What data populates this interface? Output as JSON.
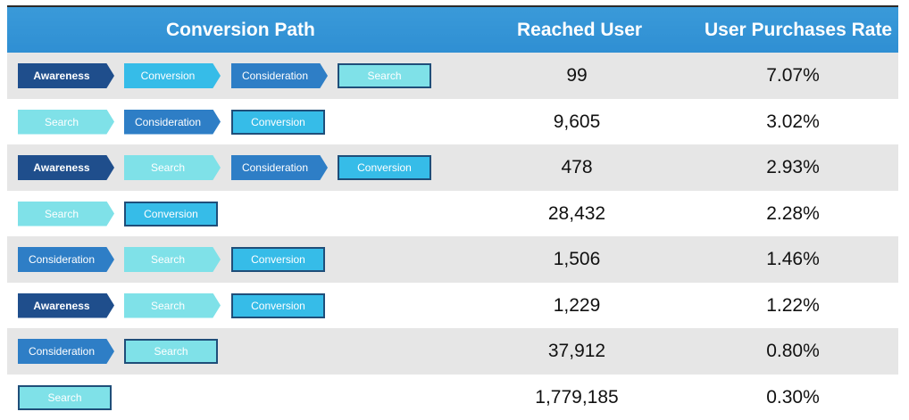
{
  "header": {
    "path": "Conversion Path",
    "reached": "Reached User",
    "rate": "User Purchases Rate"
  },
  "rows": [
    {
      "steps": [
        "Awareness",
        "Conversion",
        "Consideration",
        "Search"
      ],
      "reached": "99",
      "rate": "7.07%"
    },
    {
      "steps": [
        "Search",
        "Consideration",
        "Conversion"
      ],
      "reached": "9,605",
      "rate": "3.02%"
    },
    {
      "steps": [
        "Awareness",
        "Search",
        "Consideration",
        "Conversion"
      ],
      "reached": "478",
      "rate": "2.93%"
    },
    {
      "steps": [
        "Search",
        "Conversion"
      ],
      "reached": "28,432",
      "rate": "2.28%"
    },
    {
      "steps": [
        "Consideration",
        "Search",
        "Conversion"
      ],
      "reached": "1,506",
      "rate": "1.46%"
    },
    {
      "steps": [
        "Awareness",
        "Search",
        "Conversion"
      ],
      "reached": "1,229",
      "rate": "1.22%"
    },
    {
      "steps": [
        "Consideration",
        "Search"
      ],
      "reached": "37,912",
      "rate": "0.80%"
    },
    {
      "steps": [
        "Search"
      ],
      "reached": "1,779,185",
      "rate": "0.30%"
    }
  ],
  "colors": {
    "header_bg": "#3a9ad9",
    "awareness": "#1f4e8c",
    "consideration": "#2e7ec6",
    "conversion": "#36bce8",
    "search": "#7fe1e8",
    "alt_row": "#e6e6e6"
  }
}
